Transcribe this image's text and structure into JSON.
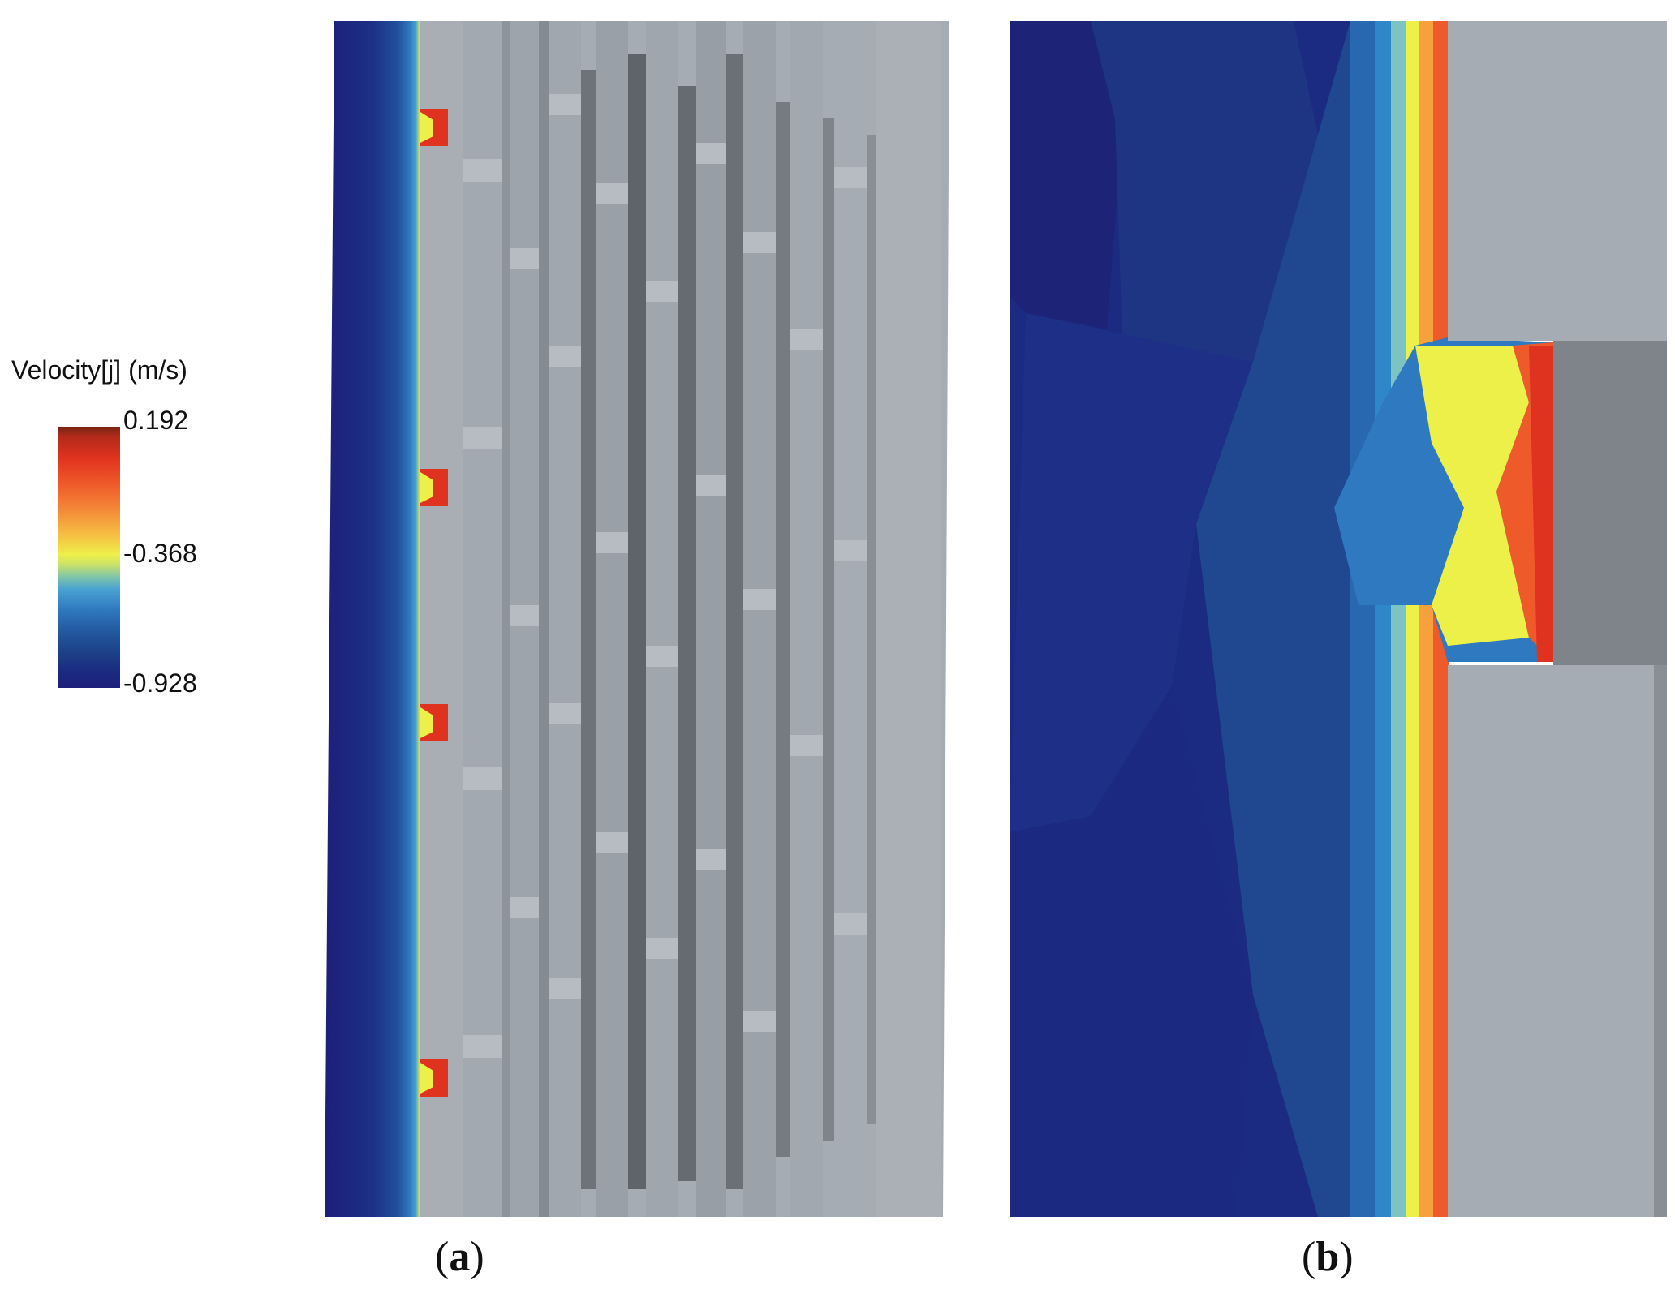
{
  "legend": {
    "title": "Velocity[j] (m/s)",
    "max_label": "0.192",
    "mid_label": "-0.368",
    "min_label": "-0.928",
    "colors": [
      "#7a2412",
      "#e0331f",
      "#f48a38",
      "#eef04a",
      "#4aa3d1",
      "#235aa0",
      "#1d1f7a"
    ]
  },
  "panels": [
    {
      "open": "(",
      "letter": "a",
      "close": ")"
    },
    {
      "open": "(",
      "letter": "b",
      "close": ")"
    }
  ]
}
